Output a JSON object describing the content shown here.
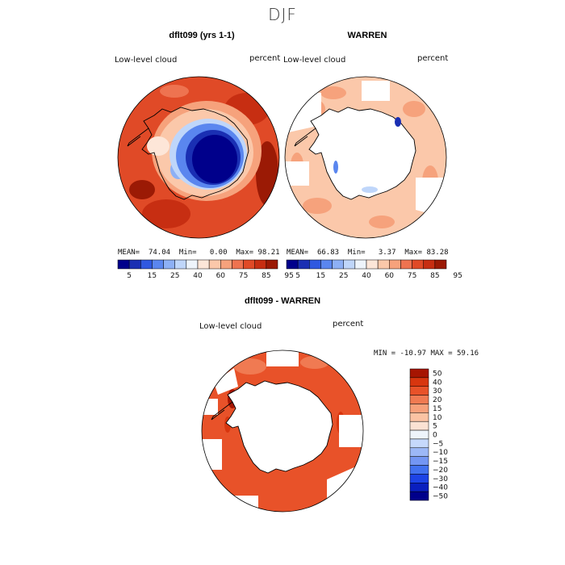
{
  "figure": {
    "title": "DJF"
  },
  "colors": {
    "cmap_top": [
      "#00008b",
      "#1a2fb3",
      "#2f58e0",
      "#5a86ef",
      "#8db0f5",
      "#bfd6fa",
      "#eef4fb",
      "#fde6d8",
      "#fbc8aa",
      "#f6a27c",
      "#ee7350",
      "#e04a27",
      "#c72e12",
      "#9b1a05"
    ],
    "cmap_diff": [
      "#00008b",
      "#0a1fbf",
      "#1d43e6",
      "#4271ef",
      "#7396f3",
      "#9cb8f7",
      "#c6d9fb",
      "#eef4fb",
      "#fbe2d3",
      "#fbc3a3",
      "#f7a07a",
      "#f07a52",
      "#e85229",
      "#d8360f",
      "#a61502"
    ],
    "land_line": "#000000"
  },
  "panels": [
    {
      "title": "dflt099 (yrs 1-1)",
      "variable": "Low-level cloud",
      "units": "percent",
      "stats": {
        "mean_label": "MEAN=",
        "mean": "74.04",
        "min_label": "Min=",
        "min": "0.00",
        "max_label": "Max=",
        "max": "98.21"
      },
      "colorbar_ticks": [
        "5",
        "15",
        "25",
        "40",
        "60",
        "75",
        "85",
        "95"
      ]
    },
    {
      "title": "WARREN",
      "variable": "Low-level cloud",
      "units": "percent",
      "stats": {
        "mean_label": "MEAN=",
        "mean": "66.83",
        "min_label": "Min=",
        "min": "3.37",
        "max_label": "Max=",
        "max": "83.28"
      },
      "colorbar_ticks": [
        "5",
        "15",
        "25",
        "40",
        "60",
        "75",
        "85",
        "95"
      ]
    },
    {
      "title": "dflt099 - WARREN",
      "variable": "Low-level cloud",
      "units": "percent",
      "minmax": "MIN = -10.97 MAX =  59.16",
      "colorbar_ticks": [
        "50",
        "40",
        "30",
        "20",
        "15",
        "10",
        "5",
        "0",
        "−5",
        "−10",
        "−15",
        "−20",
        "−30",
        "−40",
        "−50"
      ]
    }
  ]
}
